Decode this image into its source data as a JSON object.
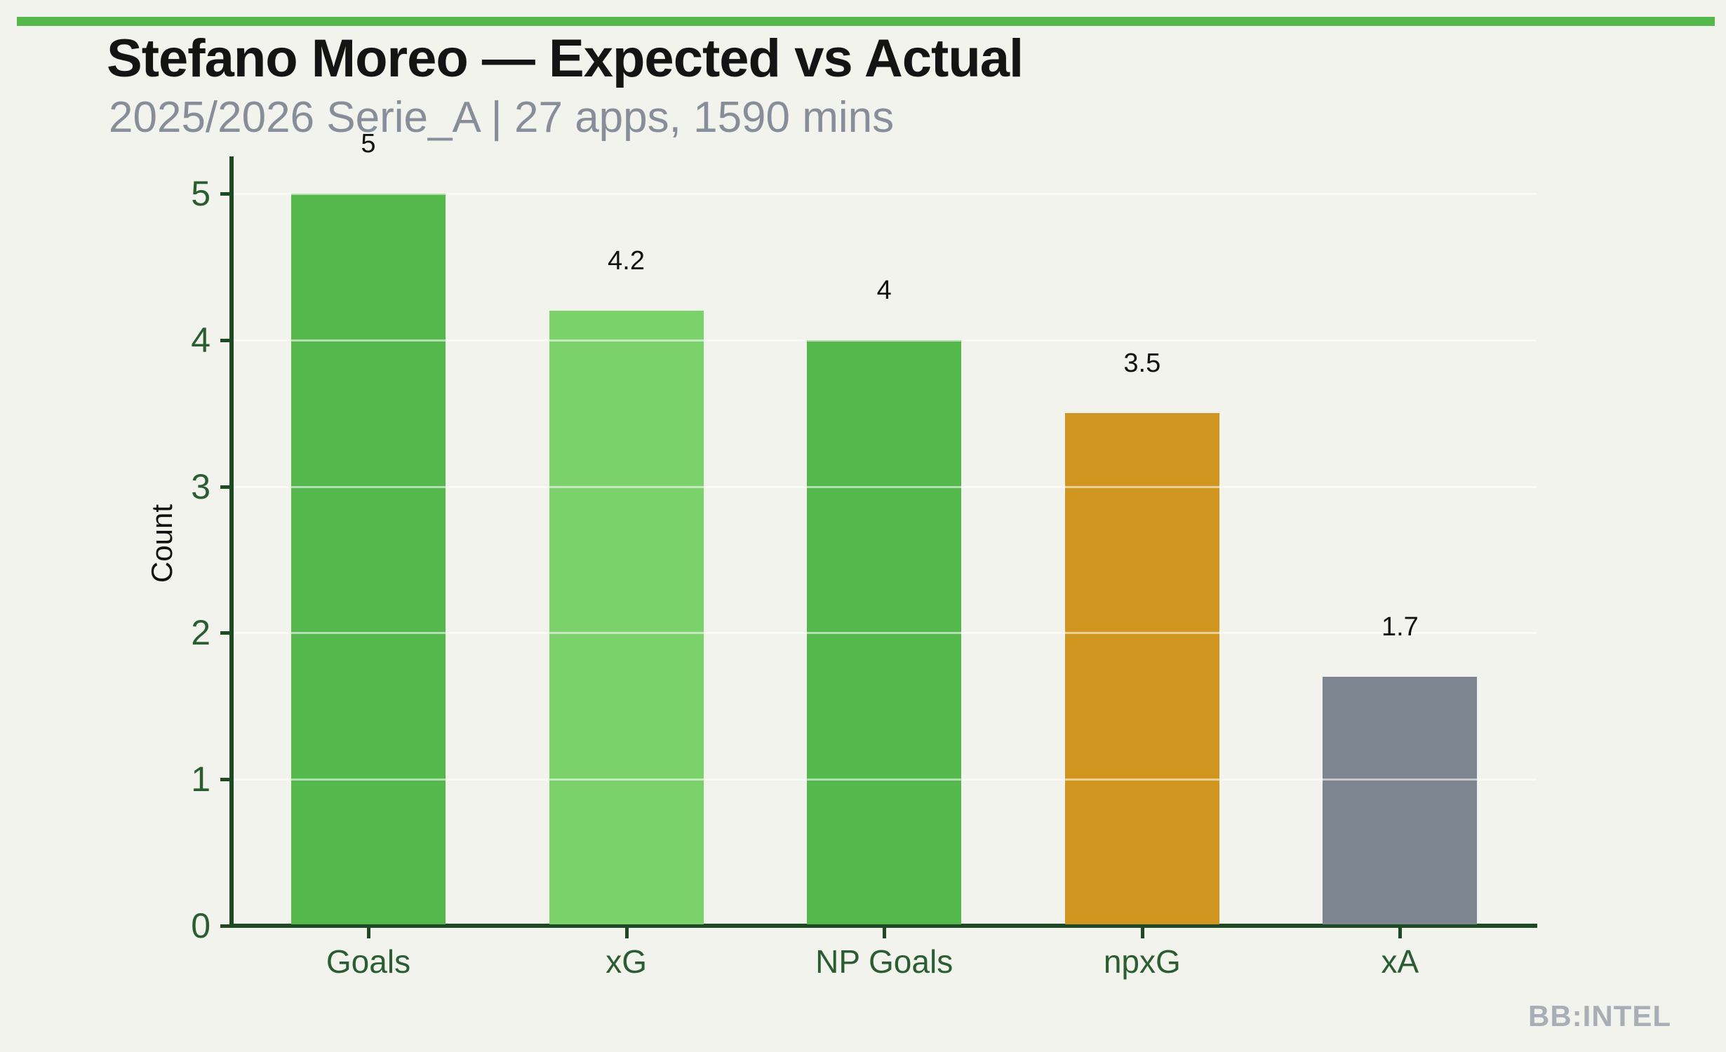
{
  "page": {
    "background_color": "#f2f3ec",
    "accent_bar_color": "#55b84c"
  },
  "header": {
    "title": "Stefano Moreo — Expected vs Actual",
    "subtitle": "2025/2026 Serie_A | 27 apps, 1590 mins"
  },
  "watermark": "BB:INTEL",
  "chart_data": {
    "type": "bar",
    "title": "Stefano Moreo — Expected vs Actual",
    "subtitle": "2025/2026 Serie_A | 27 apps, 1590 mins",
    "categories": [
      "Goals",
      "xG",
      "NP Goals",
      "npxG",
      "xA"
    ],
    "values": [
      5,
      4.2,
      4,
      3.5,
      1.7
    ],
    "value_labels": [
      "5",
      "4.2",
      "4",
      "3.5",
      "1.7"
    ],
    "bar_colors": [
      "#55b84c",
      "#7cd26a",
      "#55b84c",
      "#d09620",
      "#7d8591"
    ],
    "xlabel": "",
    "ylabel": "Count",
    "ylim": [
      0,
      5.25
    ],
    "yticks": [
      0,
      1,
      2,
      3,
      4,
      5
    ],
    "grid": "horizontal",
    "legend": "none",
    "axis_color": "#1d4a24",
    "tick_label_color": "#2b5d33"
  }
}
